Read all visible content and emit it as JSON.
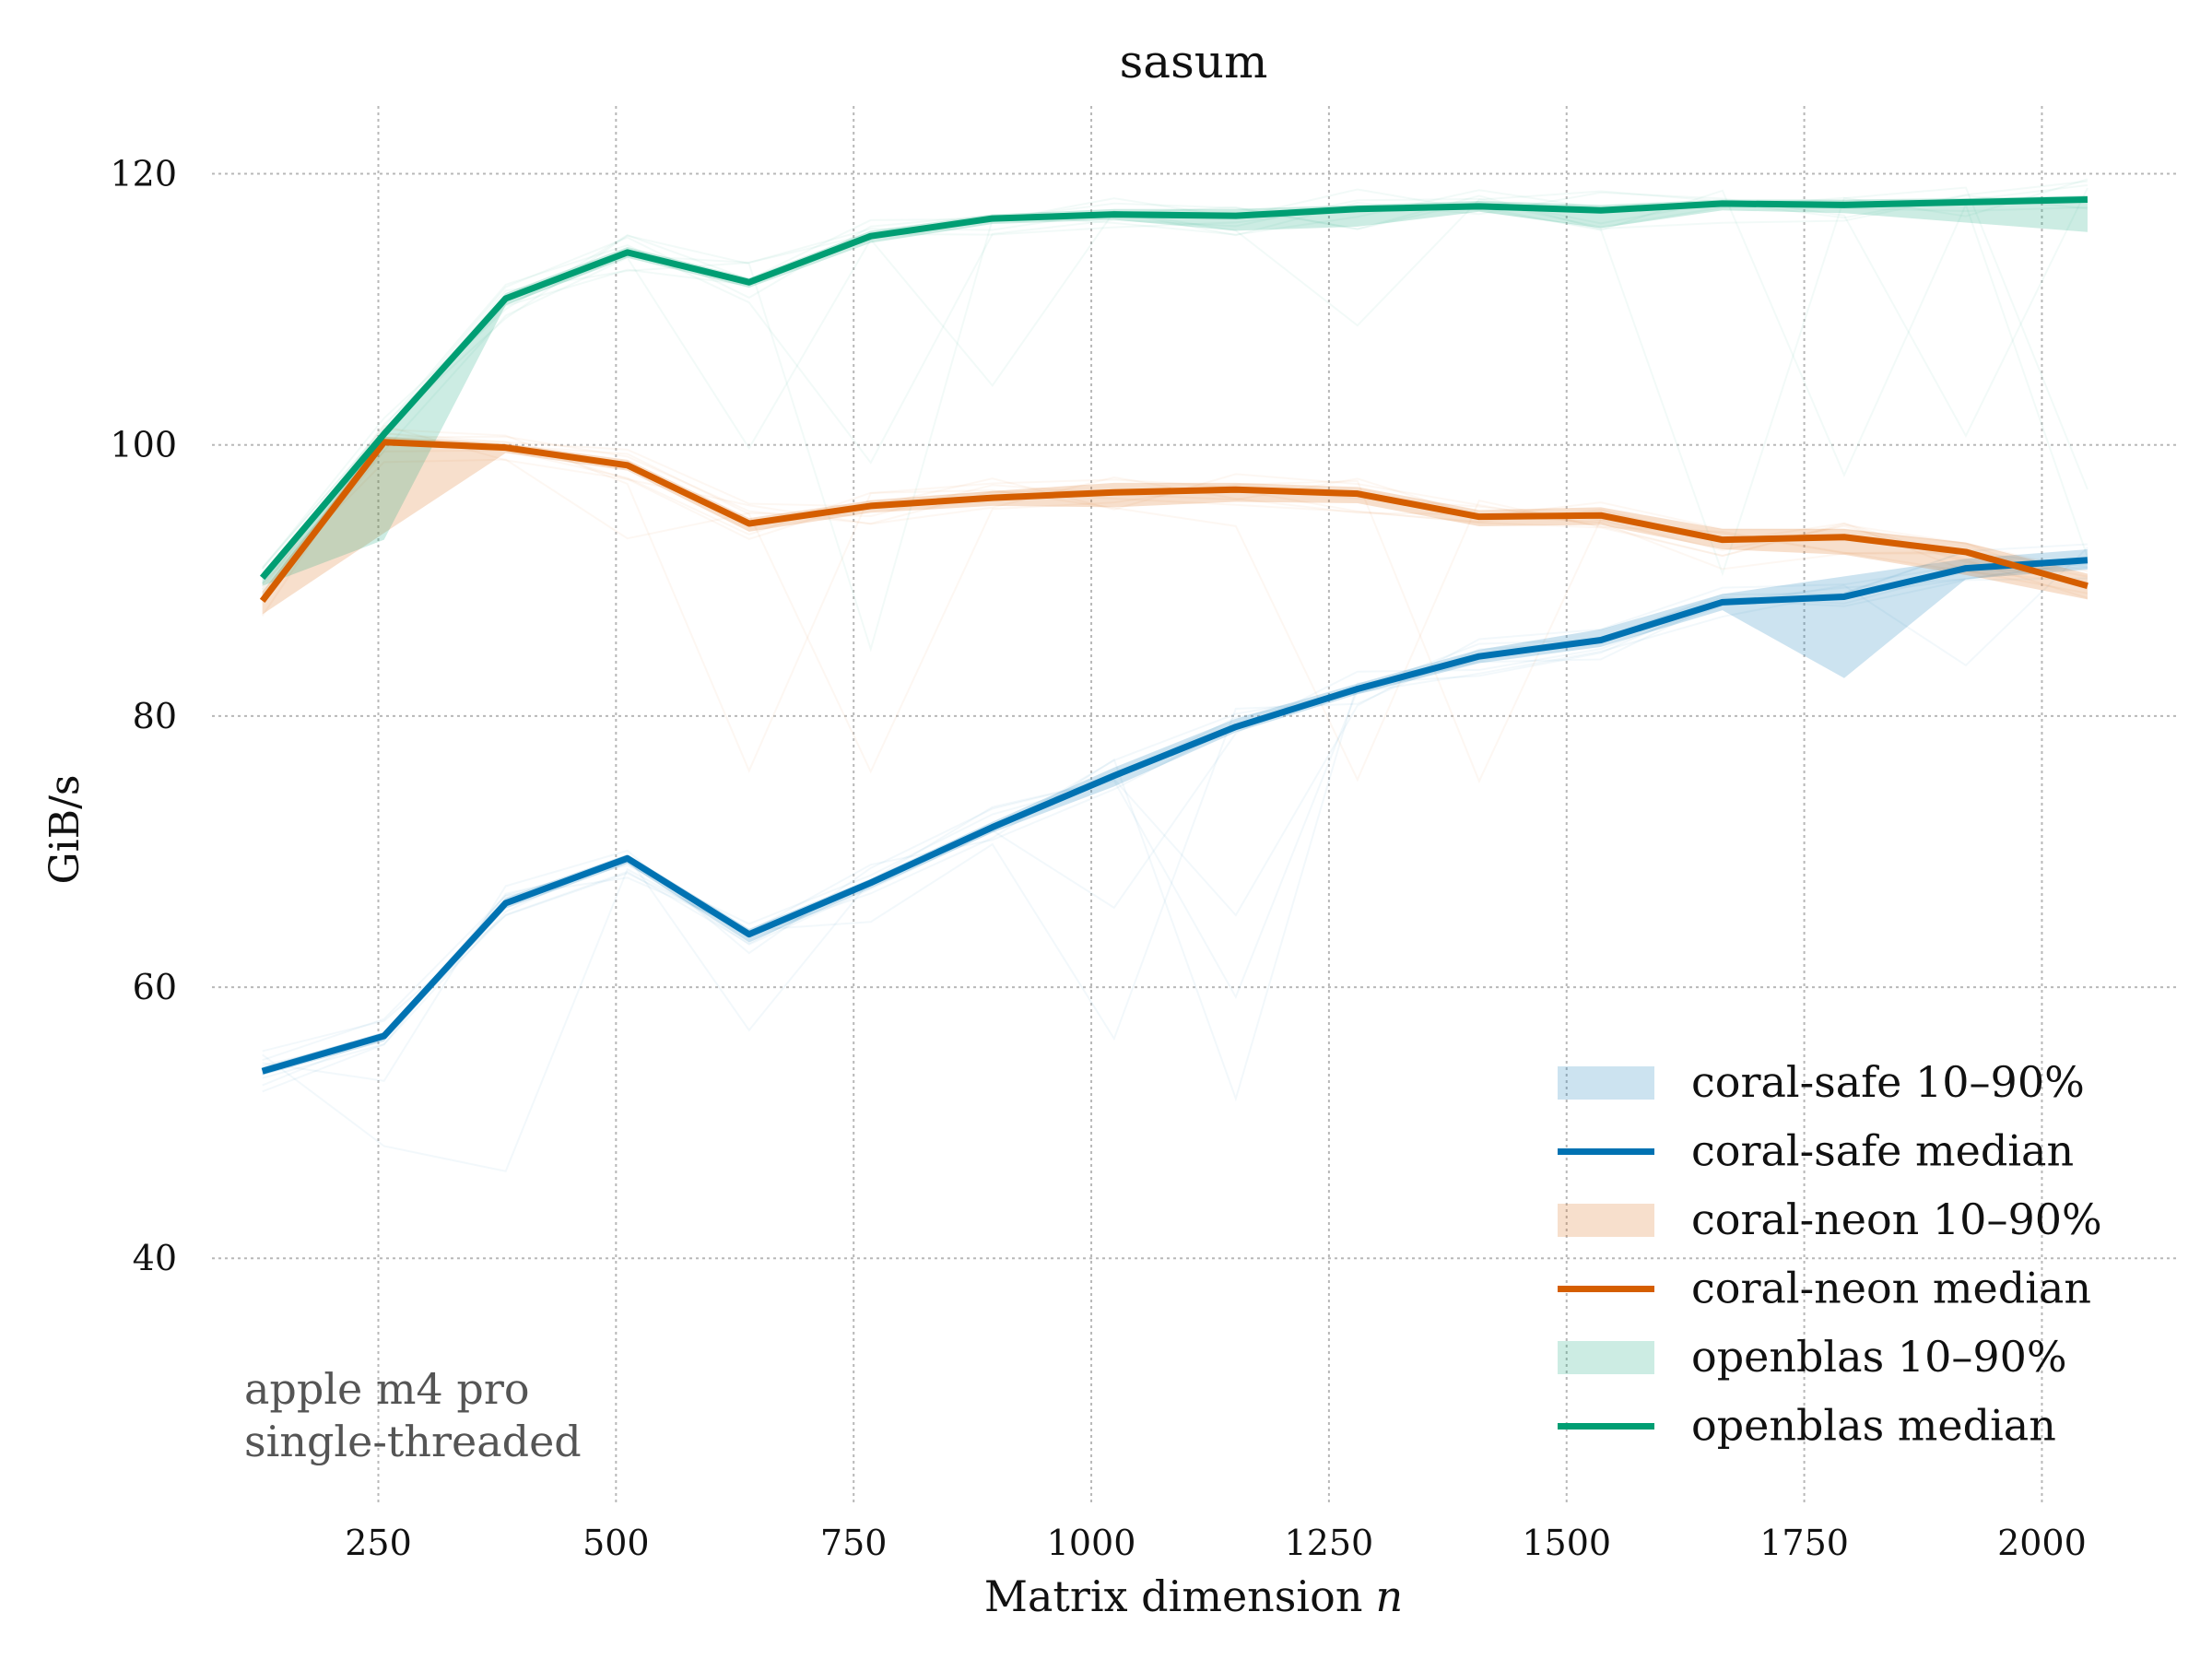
{
  "chart_data": {
    "type": "line",
    "title": "sasum",
    "xlabel": "Matrix dimension",
    "xlabel_var": "n",
    "ylabel": "GiB/s",
    "xlim": [
      75,
      2145
    ],
    "ylim": [
      22,
      125
    ],
    "xticks": [
      250,
      500,
      750,
      1000,
      1250,
      1500,
      1750,
      2000
    ],
    "yticks": [
      40,
      60,
      80,
      100,
      120
    ],
    "grid": true,
    "legend_position": "bottom-right",
    "annotation": [
      "apple m4 pro",
      "single-threaded"
    ],
    "x": [
      128,
      256,
      384,
      512,
      640,
      768,
      896,
      1024,
      1152,
      1280,
      1408,
      1536,
      1664,
      1792,
      1920,
      2048
    ],
    "series": [
      {
        "name": "coral-safe",
        "color": "#0072B2",
        "band_color": "#0072B2",
        "band_label": "coral-safe 10–90%",
        "median_label": "coral-safe median",
        "median": [
          53.8,
          56.4,
          66.2,
          69.5,
          63.9,
          67.7,
          71.8,
          75.6,
          79.2,
          82.0,
          84.4,
          85.6,
          88.4,
          88.8,
          90.9,
          91.5
        ],
        "p10": [
          53.5,
          56.0,
          65.8,
          69.1,
          63.3,
          67.3,
          71.4,
          74.8,
          78.8,
          81.6,
          83.9,
          85.1,
          87.8,
          82.8,
          90.1,
          90.8
        ],
        "p90": [
          54.1,
          56.7,
          66.6,
          69.8,
          64.3,
          68.0,
          72.2,
          76.2,
          79.8,
          82.4,
          84.9,
          86.4,
          89.0,
          90.3,
          91.6,
          92.3
        ]
      },
      {
        "name": "coral-neon",
        "color": "#D55E00",
        "band_color": "#D55E00",
        "band_label": "coral-neon 10–90%",
        "median_label": "coral-neon median",
        "median": [
          88.5,
          100.2,
          99.8,
          98.5,
          94.2,
          95.5,
          96.1,
          96.5,
          96.7,
          96.4,
          94.7,
          94.8,
          93.0,
          93.2,
          92.1,
          89.6
        ],
        "p10": [
          87.5,
          93.5,
          99.4,
          98.1,
          93.6,
          95.0,
          95.5,
          95.4,
          95.8,
          95.7,
          94.0,
          94.1,
          92.3,
          91.9,
          90.4,
          88.6
        ],
        "p90": [
          89.2,
          100.6,
          100.1,
          98.9,
          94.6,
          95.9,
          96.6,
          97.2,
          97.2,
          96.9,
          95.2,
          95.4,
          93.8,
          93.8,
          92.8,
          90.5
        ]
      },
      {
        "name": "openblas",
        "color": "#009E73",
        "band_color": "#009E73",
        "band_label": "openblas 10–90%",
        "median_label": "openblas median",
        "median": [
          90.2,
          100.8,
          110.8,
          114.2,
          112.0,
          115.4,
          116.7,
          117.0,
          116.9,
          117.4,
          117.6,
          117.3,
          117.8,
          117.7,
          117.9,
          118.1
        ],
        "p10": [
          89.6,
          93.0,
          110.3,
          113.8,
          111.6,
          114.9,
          116.3,
          116.6,
          115.8,
          116.1,
          117.2,
          116.0,
          117.3,
          117.1,
          116.4,
          115.7
        ],
        "p90": [
          90.6,
          101.0,
          111.2,
          114.6,
          112.3,
          115.8,
          117.0,
          117.4,
          117.4,
          117.7,
          118.0,
          117.7,
          118.1,
          118.1,
          118.2,
          118.4
        ]
      }
    ]
  }
}
